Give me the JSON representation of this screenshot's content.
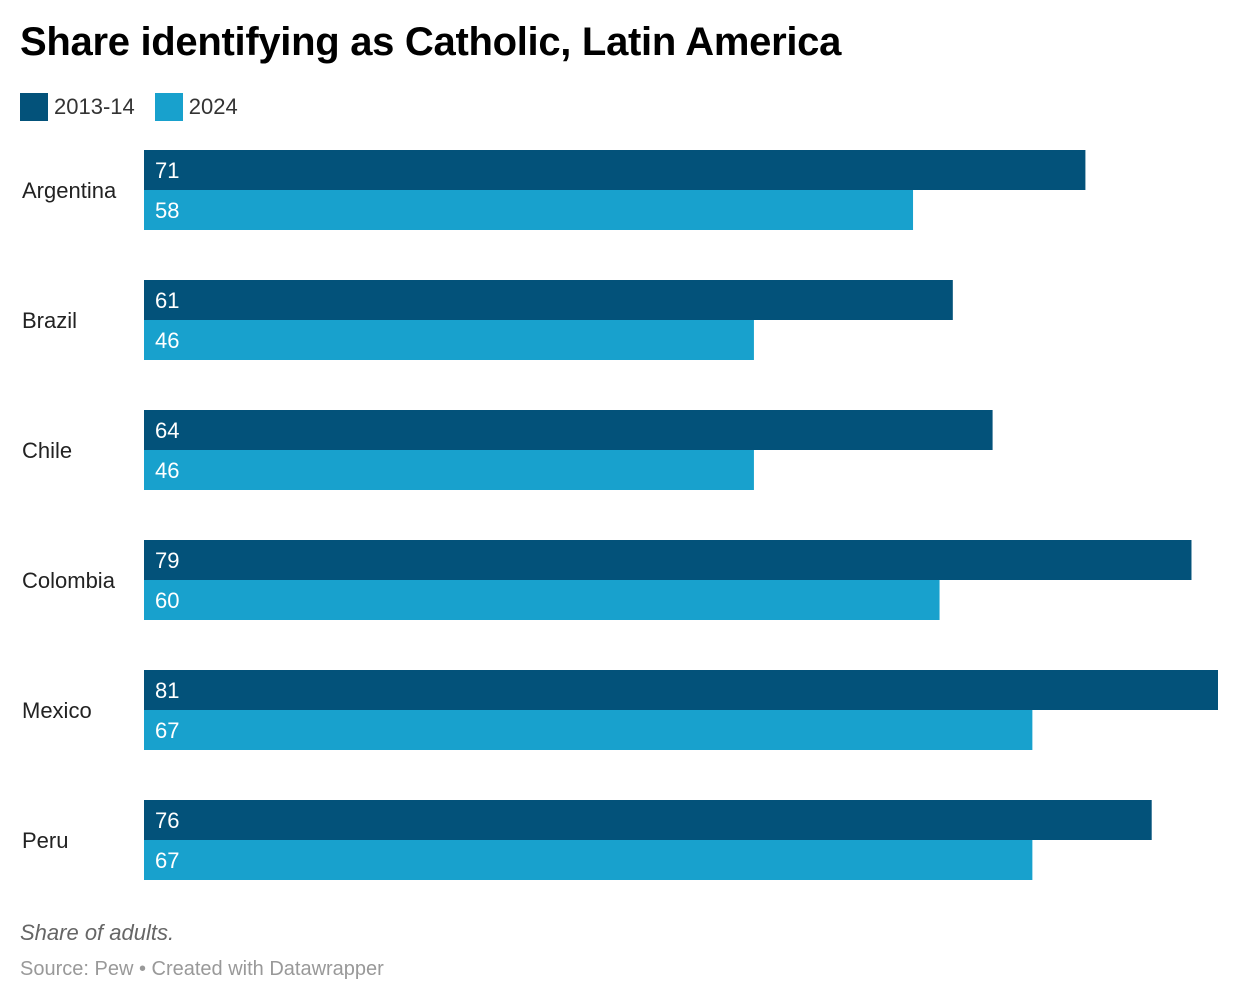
{
  "chart_data": {
    "type": "bar",
    "orientation": "horizontal",
    "title": "Share identifying as Catholic, Latin America",
    "categories": [
      "Argentina",
      "Brazil",
      "Chile",
      "Colombia",
      "Mexico",
      "Peru"
    ],
    "series": [
      {
        "name": "2013-14",
        "color": "#03527a",
        "values": [
          71,
          61,
          64,
          79,
          81,
          76
        ]
      },
      {
        "name": "2024",
        "color": "#18a1cd",
        "values": [
          58,
          46,
          46,
          60,
          67,
          67
        ]
      }
    ],
    "xlim": [
      0,
      81
    ],
    "grid": false,
    "legend": "top-left",
    "note": "Share of adults.",
    "source": "Source: Pew • Created with Datawrapper"
  }
}
